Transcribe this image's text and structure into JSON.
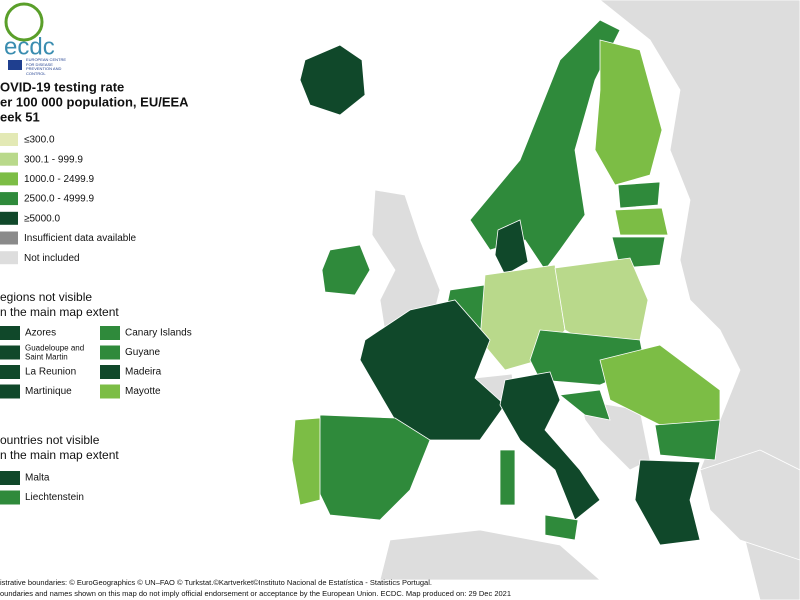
{
  "logo": {
    "name": "ecdc",
    "subtitle": "EUROPEAN CENTRE FOR DISEASE PREVENTION AND CONTROL"
  },
  "title": [
    "OVID-19 testing rate",
    "er 100 000 population, EU/EEA",
    "eek 51"
  ],
  "legend": {
    "items": [
      {
        "label": "≤300.0",
        "color": "#e3e9b5"
      },
      {
        "label": "300.1 - 999.9",
        "color": "#b9d98b"
      },
      {
        "label": "1000.0 - 2499.9",
        "color": "#7cbd45"
      },
      {
        "label": "2500.0 - 4999.9",
        "color": "#2f8a3b"
      },
      {
        "label": "≥5000.0",
        "color": "#10482a"
      },
      {
        "label": "Insufficient data available",
        "color": "#8a8a8a"
      },
      {
        "label": "Not included",
        "color": "#dddddd"
      }
    ]
  },
  "regions": {
    "title": [
      "egions not visible",
      "n the main map extent"
    ],
    "items": [
      {
        "label": "Azores",
        "color": "#10482a"
      },
      {
        "label": "Guadeloupe and Saint Martin",
        "color": "#10482a"
      },
      {
        "label": "La Reunion",
        "color": "#10482a"
      },
      {
        "label": "Martinique",
        "color": "#10482a"
      },
      {
        "label": "Canary Islands",
        "color": "#2f8a3b"
      },
      {
        "label": "Guyane",
        "color": "#2f8a3b"
      },
      {
        "label": "Madeira",
        "color": "#10482a"
      },
      {
        "label": "Mayotte",
        "color": "#7cbd45"
      }
    ]
  },
  "countries": {
    "title": [
      "ountries not visible",
      "n the main map extent"
    ],
    "items": [
      {
        "label": "Malta",
        "color": "#10482a"
      },
      {
        "label": "Liechtenstein",
        "color": "#2f8a3b"
      }
    ]
  },
  "footer": [
    "istrative boundaries: © EuroGeographics © UN–FAO © Turkstat.©Kartverket©Instituto Nacional de Estatística - Statistics Portugal.",
    "oundaries and names shown on this map do not imply official endorsement or acceptance by the European Union. ECDC. Map produced on: 29 Dec 2021"
  ]
}
